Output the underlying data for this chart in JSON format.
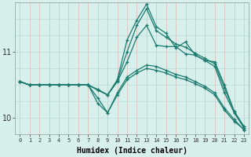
{
  "xlabel": "Humidex (Indice chaleur)",
  "bg_color": "#d8f0ec",
  "line_color": "#1a7a6e",
  "grid_color_v": "#dbb8b8",
  "grid_color_h": "#b8ddd8",
  "xlim": [
    -0.5,
    23.5
  ],
  "ylim": [
    9.75,
    11.75
  ],
  "yticks": [
    10,
    11
  ],
  "xticks": [
    0,
    1,
    2,
    3,
    4,
    5,
    6,
    7,
    8,
    9,
    10,
    11,
    12,
    13,
    14,
    15,
    16,
    17,
    18,
    19,
    20,
    21,
    22,
    23
  ],
  "series": [
    {
      "x": [
        0,
        1,
        2,
        3,
        4,
        5,
        6,
        7,
        8,
        9,
        10,
        11,
        12,
        13,
        14,
        15,
        16,
        17,
        18,
        19,
        20,
        21,
        22,
        23
      ],
      "y": [
        10.55,
        10.5,
        10.5,
        10.5,
        10.5,
        10.5,
        10.5,
        10.5,
        10.42,
        10.35,
        10.58,
        11.18,
        11.48,
        11.72,
        11.38,
        11.28,
        11.06,
        11.15,
        10.95,
        10.87,
        10.85,
        10.5,
        10.1,
        9.87
      ]
    },
    {
      "x": [
        0,
        1,
        2,
        3,
        4,
        5,
        6,
        7,
        8,
        9,
        10,
        11,
        12,
        13,
        14,
        15,
        16,
        17,
        18,
        19,
        20,
        21,
        22,
        23
      ],
      "y": [
        10.55,
        10.5,
        10.5,
        10.5,
        10.5,
        10.5,
        10.5,
        10.5,
        10.43,
        10.35,
        10.56,
        11.0,
        11.4,
        11.65,
        11.32,
        11.22,
        11.12,
        11.07,
        10.98,
        10.9,
        10.82,
        10.45,
        10.1,
        9.87
      ]
    },
    {
      "x": [
        0,
        1,
        2,
        3,
        4,
        5,
        6,
        7,
        8,
        9,
        10,
        11,
        12,
        13,
        14,
        15,
        16,
        17,
        18,
        19,
        20,
        21,
        22,
        23
      ],
      "y": [
        10.55,
        10.5,
        10.5,
        10.5,
        10.5,
        10.5,
        10.5,
        10.5,
        10.43,
        10.35,
        10.55,
        10.85,
        11.22,
        11.4,
        11.1,
        11.08,
        11.08,
        10.97,
        10.95,
        10.87,
        10.78,
        10.38,
        10.08,
        9.85
      ]
    },
    {
      "x": [
        0,
        1,
        2,
        3,
        4,
        5,
        6,
        7,
        8,
        9,
        10,
        11,
        12,
        13,
        14,
        15,
        16,
        17,
        18,
        19,
        20,
        21,
        22,
        23
      ],
      "y": [
        10.55,
        10.5,
        10.5,
        10.5,
        10.5,
        10.5,
        10.5,
        10.5,
        10.3,
        10.08,
        10.35,
        10.58,
        10.68,
        10.75,
        10.72,
        10.68,
        10.62,
        10.58,
        10.52,
        10.45,
        10.35,
        10.12,
        9.95,
        9.83
      ]
    },
    {
      "x": [
        0,
        1,
        2,
        3,
        4,
        5,
        6,
        7,
        8,
        9,
        10,
        11,
        12,
        13,
        14,
        15,
        16,
        17,
        18,
        19,
        20,
        21,
        22,
        23
      ],
      "y": [
        10.55,
        10.5,
        10.5,
        10.5,
        10.5,
        10.5,
        10.5,
        10.5,
        10.22,
        10.08,
        10.38,
        10.62,
        10.72,
        10.8,
        10.78,
        10.72,
        10.66,
        10.62,
        10.55,
        10.48,
        10.38,
        10.15,
        9.98,
        9.82
      ]
    }
  ]
}
